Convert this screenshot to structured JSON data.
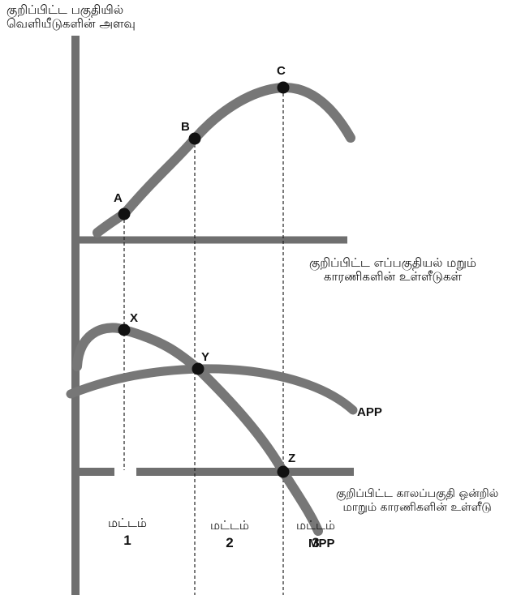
{
  "y_axis_label": [
    "குறிப்பிட்ட பகுதியில்",
    "வெளியீடுகளின் அளவு"
  ],
  "top_x_axis_label": [
    "குறிப்பிட்ட எப்பகுதியல் மறும்",
    "காரணிகளின் உள்ளீடுகள்"
  ],
  "bottom_x_axis_label": [
    "குறிப்பிட்ட காலப்பகுதி ஒன்றில்",
    "மாறும் காரணிகளின் உள்ளீடு"
  ],
  "points": {
    "a": "A",
    "b": "B",
    "c": "C",
    "x": "X",
    "y": "Y",
    "z": "Z"
  },
  "curves": {
    "app": "APP",
    "mpp": "MPP"
  },
  "stages": [
    {
      "word": "மட்டம்",
      "number": "1"
    },
    {
      "word": "மட்டம்",
      "number": "2"
    },
    {
      "word": "மட்டம்",
      "number": "3"
    }
  ],
  "colors": {
    "curve": "#777777",
    "axis": "#6f6f6f",
    "point": "#111111",
    "guide": "#222222"
  }
}
